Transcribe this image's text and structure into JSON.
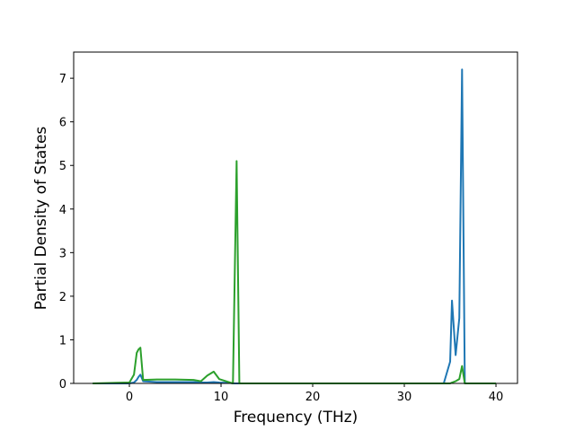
{
  "chart_data": {
    "type": "line",
    "x_label": "Frequency (THz)",
    "y_label": "Partial Density of States",
    "x": [
      -4,
      0,
      0.5,
      0.8,
      1,
      1.2,
      1.5,
      3,
      5,
      7,
      7.8,
      8.5,
      9.2,
      9.8,
      11,
      11.3,
      11.7,
      12,
      20,
      34.3,
      35,
      35.2,
      35.6,
      36,
      36.3,
      36.6,
      40
    ],
    "series": [
      {
        "color": "#1f77b4",
        "values": [
          0,
          0,
          0.02,
          0.08,
          0.15,
          0.2,
          0.05,
          0.03,
          0.03,
          0.03,
          0.02,
          0.02,
          0.03,
          0.02,
          0.01,
          0,
          0,
          0,
          0,
          0,
          0.5,
          1.9,
          0.65,
          1.5,
          7.2,
          0,
          0
        ]
      },
      {
        "color": "#2ca02c",
        "values": [
          0,
          0.02,
          0.2,
          0.7,
          0.78,
          0.82,
          0.08,
          0.09,
          0.09,
          0.08,
          0.05,
          0.18,
          0.27,
          0.1,
          0.02,
          0,
          5.1,
          0,
          0,
          0,
          0,
          0.02,
          0.05,
          0.1,
          0.4,
          0,
          0
        ]
      }
    ],
    "xlim": [
      -6.08,
      42.35
    ],
    "ylim": [
      0,
      7.6
    ],
    "xticks": [
      0,
      10,
      20,
      30,
      40
    ],
    "yticks": [
      0,
      1,
      2,
      3,
      4,
      5,
      6,
      7
    ]
  }
}
